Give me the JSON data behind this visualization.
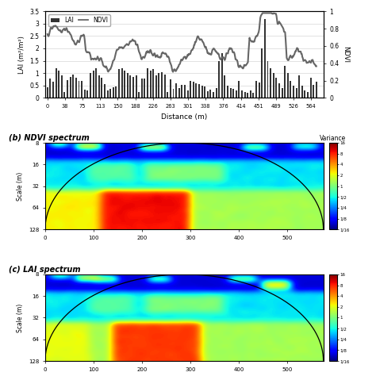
{
  "panel_b_label": "(b) NDVI spectrum",
  "panel_c_label": "(c) LAI spectrum",
  "colorbar_label": "Variance",
  "colorbar_ticks": [
    "16",
    "8",
    "4",
    "2",
    "1",
    "1/2",
    "1/4",
    "1/8",
    "1/16"
  ],
  "xlabel": "Distance (m)",
  "ylabel_left": "LAI (m²/m²)",
  "ylabel_right": "NDVI",
  "scale_ylabel": "Scale (m)",
  "xtick_labels": [
    "0",
    "38",
    "75",
    "113",
    "150",
    "188",
    "226",
    "263",
    "301",
    "338",
    "376",
    "414",
    "451",
    "489",
    "526",
    "564"
  ],
  "ylim_lai": [
    0.0,
    3.5
  ],
  "ylim_ndvi": [
    0.0,
    1.0
  ],
  "yticks_lai": [
    0.0,
    0.5,
    1.0,
    1.5,
    2.0,
    2.5,
    3.0,
    3.5
  ],
  "yticks_ndvi": [
    0.0,
    0.2,
    0.4,
    0.6,
    0.8,
    1.0
  ],
  "bar_color": "#333333",
  "line_color": "#666666",
  "line_width": 1.5
}
